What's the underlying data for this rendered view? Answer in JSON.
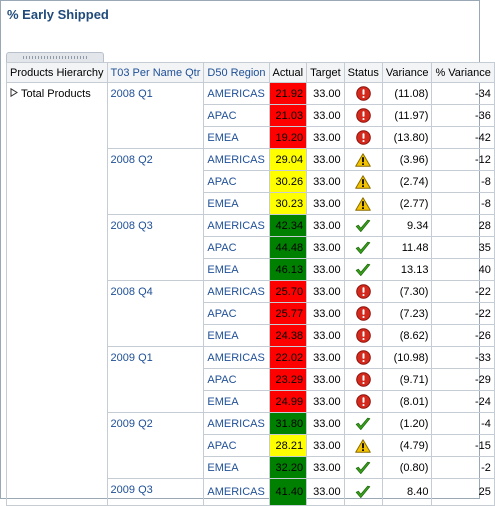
{
  "title": "% Early Shipped",
  "columns": {
    "hierarchy": "Products Hierarchy",
    "quarter": "T03 Per Name Qtr",
    "region": "D50 Region",
    "actual": "Actual",
    "target": "Target",
    "status": "Status",
    "variance": "Variance",
    "pct_variance": "% Variance"
  },
  "total_products": "Total Products",
  "colors": {
    "bad": "#ff0000",
    "warn": "#ffff00",
    "good": "#008000"
  },
  "quarters": [
    {
      "label": "2008 Q1",
      "rows": [
        {
          "region": "AMERICAS",
          "actual": "21.92",
          "target": "33.00",
          "status": "error-icon",
          "variance": "(11.08)",
          "pct": "-34"
        },
        {
          "region": "APAC",
          "actual": "21.03",
          "target": "33.00",
          "status": "error-icon",
          "variance": "(11.97)",
          "pct": "-36"
        },
        {
          "region": "EMEA",
          "actual": "19.20",
          "target": "33.00",
          "status": "error-icon",
          "variance": "(13.80)",
          "pct": "-42"
        }
      ]
    },
    {
      "label": "2008 Q2",
      "rows": [
        {
          "region": "AMERICAS",
          "actual": "29.04",
          "target": "33.00",
          "status": "warning-icon",
          "variance": "(3.96)",
          "pct": "-12"
        },
        {
          "region": "APAC",
          "actual": "30.26",
          "target": "33.00",
          "status": "warning-icon",
          "variance": "(2.74)",
          "pct": "-8"
        },
        {
          "region": "EMEA",
          "actual": "30.23",
          "target": "33.00",
          "status": "warning-icon",
          "variance": "(2.77)",
          "pct": "-8"
        }
      ]
    },
    {
      "label": "2008 Q3",
      "rows": [
        {
          "region": "AMERICAS",
          "actual": "42.34",
          "target": "33.00",
          "status": "check-icon",
          "variance": "9.34",
          "pct": "28"
        },
        {
          "region": "APAC",
          "actual": "44.48",
          "target": "33.00",
          "status": "check-icon",
          "variance": "11.48",
          "pct": "35"
        },
        {
          "region": "EMEA",
          "actual": "46.13",
          "target": "33.00",
          "status": "check-icon",
          "variance": "13.13",
          "pct": "40"
        }
      ]
    },
    {
      "label": "2008 Q4",
      "rows": [
        {
          "region": "AMERICAS",
          "actual": "25.70",
          "target": "33.00",
          "status": "error-icon",
          "variance": "(7.30)",
          "pct": "-22"
        },
        {
          "region": "APAC",
          "actual": "25.77",
          "target": "33.00",
          "status": "error-icon",
          "variance": "(7.23)",
          "pct": "-22"
        },
        {
          "region": "EMEA",
          "actual": "24.38",
          "target": "33.00",
          "status": "error-icon",
          "variance": "(8.62)",
          "pct": "-26"
        }
      ]
    },
    {
      "label": "2009 Q1",
      "rows": [
        {
          "region": "AMERICAS",
          "actual": "22.02",
          "target": "33.00",
          "status": "error-icon",
          "variance": "(10.98)",
          "pct": "-33"
        },
        {
          "region": "APAC",
          "actual": "23.29",
          "target": "33.00",
          "status": "error-icon",
          "variance": "(9.71)",
          "pct": "-29"
        },
        {
          "region": "EMEA",
          "actual": "24.99",
          "target": "33.00",
          "status": "error-icon",
          "variance": "(8.01)",
          "pct": "-24"
        }
      ]
    },
    {
      "label": "2009 Q2",
      "rows": [
        {
          "region": "AMERICAS",
          "actual": "31.80",
          "target": "33.00",
          "status": "check-icon",
          "variance": "(1.20)",
          "pct": "-4"
        },
        {
          "region": "APAC",
          "actual": "28.21",
          "target": "33.00",
          "status": "warning-icon",
          "variance": "(4.79)",
          "pct": "-15"
        },
        {
          "region": "EMEA",
          "actual": "32.20",
          "target": "33.00",
          "status": "check-icon",
          "variance": "(0.80)",
          "pct": "-2"
        }
      ]
    },
    {
      "label": "2009 Q3",
      "rows": [
        {
          "region": "AMERICAS",
          "actual": "41.40",
          "target": "33.00",
          "status": "check-icon",
          "variance": "8.40",
          "pct": "25"
        }
      ]
    }
  ]
}
